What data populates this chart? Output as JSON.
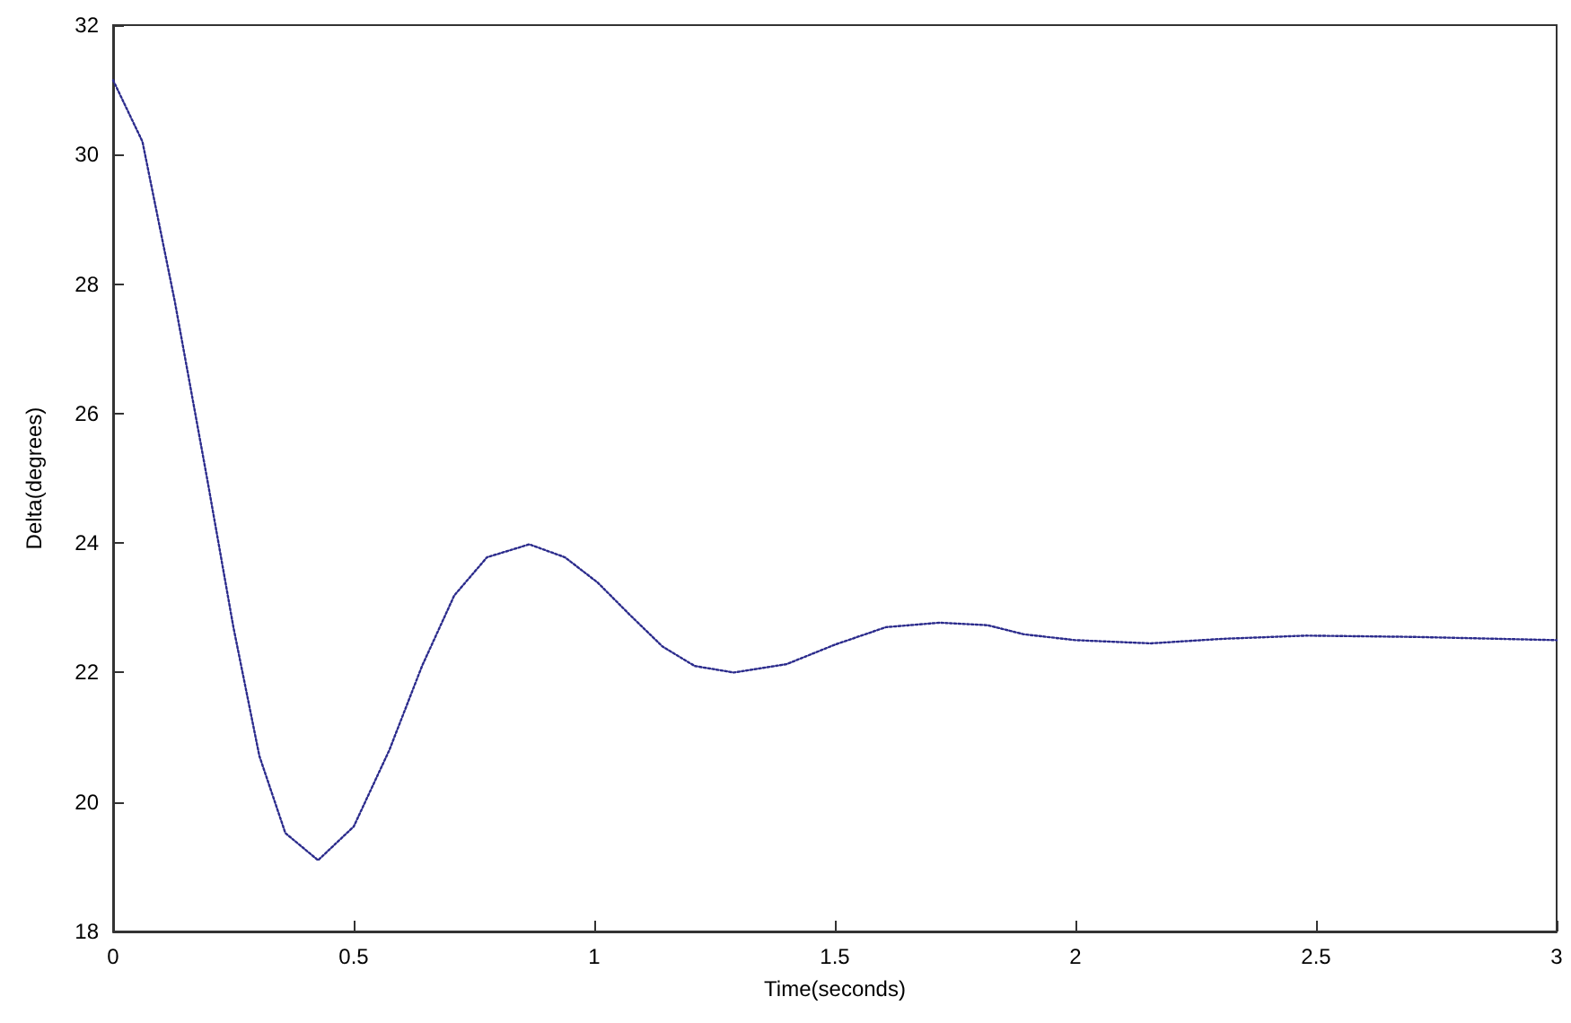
{
  "chart_data": {
    "type": "line",
    "xlabel": "Time(seconds)",
    "ylabel": "Delta(degrees)",
    "x": [
      0,
      0.061,
      0.128,
      0.196,
      0.25,
      0.304,
      0.358,
      0.426,
      0.5,
      0.574,
      0.642,
      0.709,
      0.777,
      0.865,
      0.939,
      1.007,
      1.074,
      1.142,
      1.209,
      1.29,
      1.4,
      1.5,
      1.606,
      1.718,
      1.818,
      1.893,
      2.0,
      2.156,
      2.305,
      2.48,
      2.703,
      3.0
    ],
    "series": [
      {
        "color": "#2b2b8c",
        "values": [
          31.15,
          30.2,
          27.74,
          24.97,
          22.7,
          20.71,
          19.52,
          19.1,
          19.62,
          20.8,
          22.1,
          23.19,
          23.78,
          23.98,
          23.78,
          23.39,
          22.89,
          22.4,
          22.1,
          22.0,
          22.13,
          22.43,
          22.7,
          22.77,
          22.73,
          22.59,
          22.5,
          22.45,
          22.52,
          22.57,
          22.55,
          22.5
        ]
      }
    ],
    "xlim": [
      0,
      3
    ],
    "xticks": [
      0,
      0.5,
      1,
      1.5,
      2,
      2.5,
      3
    ],
    "ylim": [
      18,
      32
    ],
    "yticks": [
      18,
      20,
      22,
      24,
      26,
      28,
      30,
      32
    ],
    "grid": false,
    "marker": "none",
    "line_style": "dotted"
  }
}
